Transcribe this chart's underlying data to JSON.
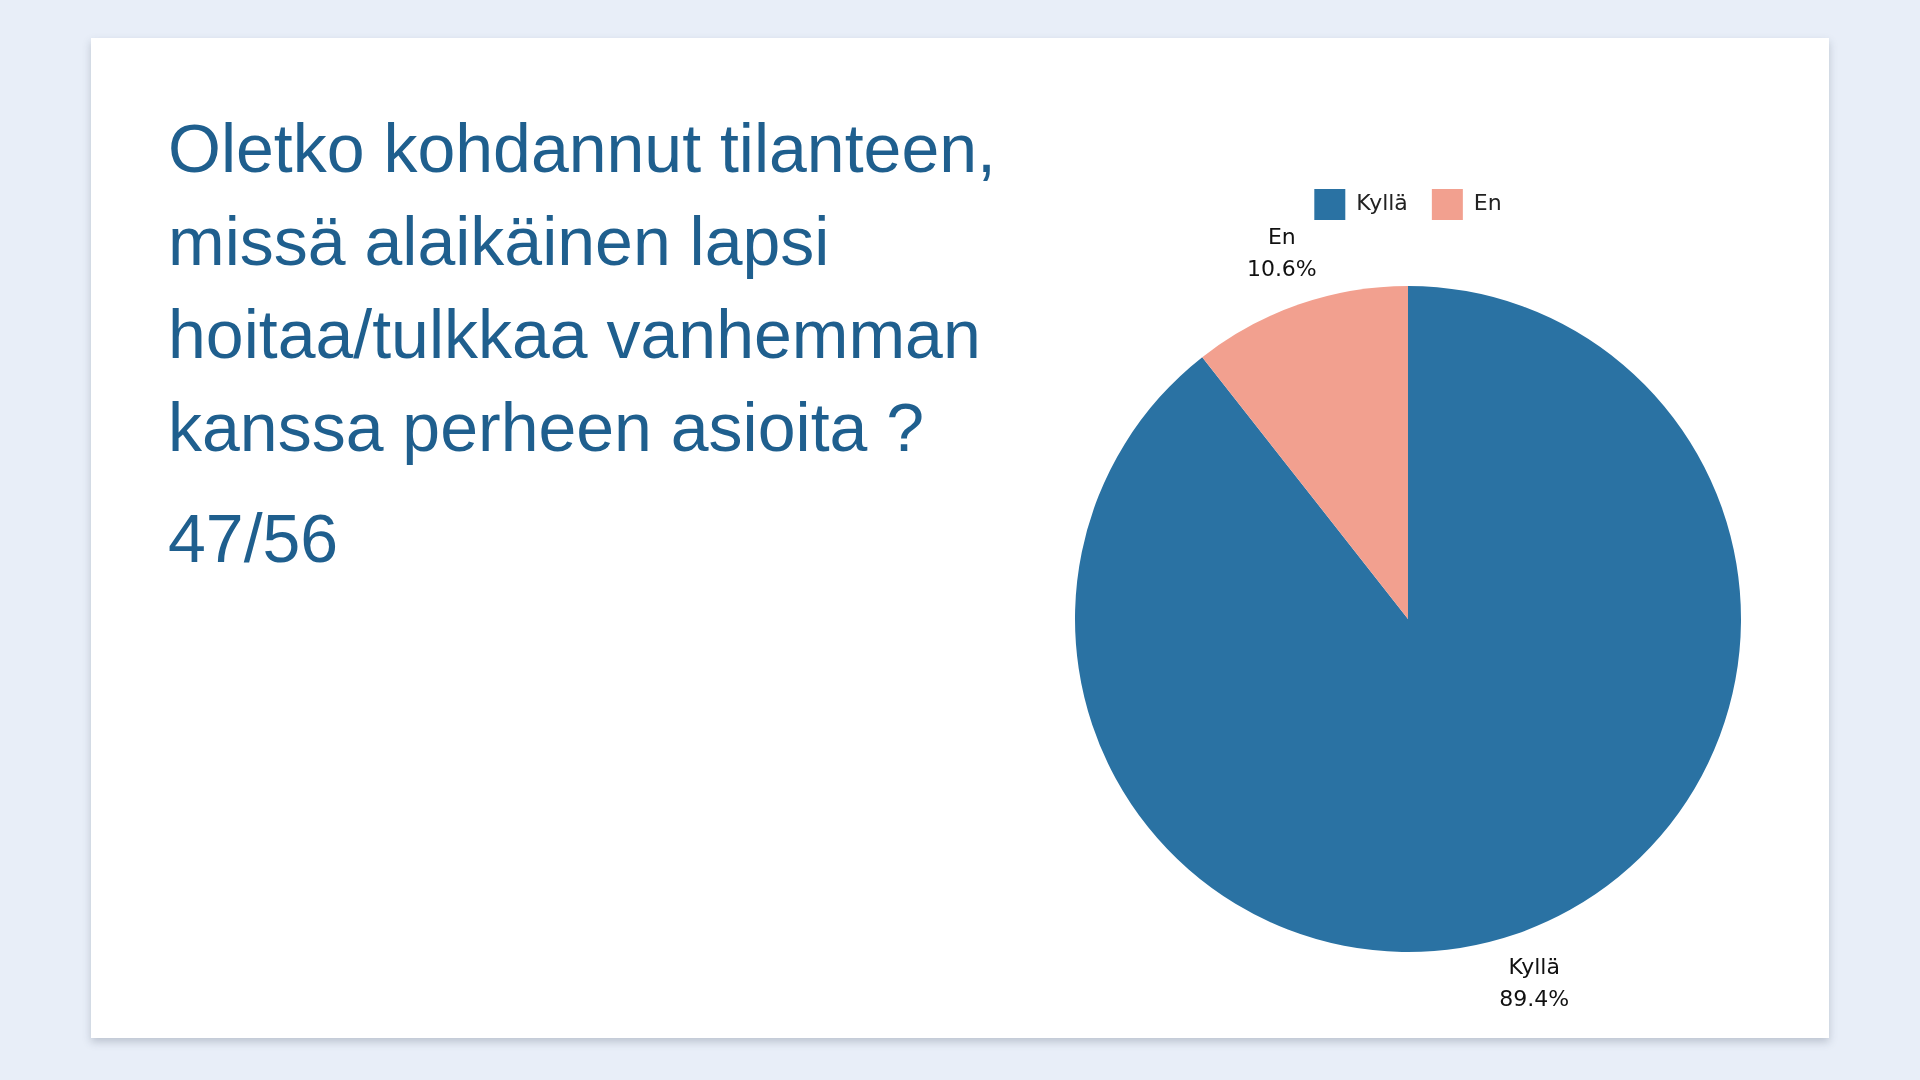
{
  "chart_data": {
    "type": "pie",
    "title": "Oletko kohdannut tilanteen, missä alaikäinen lapsi hoitaa/tulkkaa vanhemman kanssa perheen asioita ?",
    "subtitle": "47/56",
    "categories": [
      "Kyllä",
      "En"
    ],
    "values": [
      89.4,
      10.6
    ],
    "colors": [
      "#2a72a3",
      "#f2a08f"
    ],
    "value_labels": [
      "89.4%",
      "10.6%"
    ],
    "legend": "top"
  }
}
